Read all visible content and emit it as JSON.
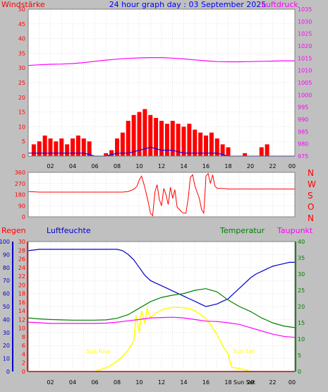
{
  "header": {
    "wind_label": "Windstärke",
    "title": "24 hour graph day : 03 September 2025",
    "pressure_label": "Luftdruck"
  },
  "middle": {
    "dir_labels": [
      "N",
      "W",
      "S",
      "O",
      "N"
    ]
  },
  "bottom": {
    "rain_label": "Regen",
    "humidity_label": "Luftfeuchte",
    "temp_label": "Temperatur",
    "dew_label": "Taupunkt",
    "sunrise_label": "Sun Rise",
    "sunset_label": "Sun Set",
    "sun_axis_label": "Sun Set"
  },
  "colors": {
    "wind": "#ff0000",
    "gust": "#0000ff",
    "pressure": "#ff00ff",
    "direction": "#ff0000",
    "humidity": "#0000cc",
    "temperature": "#008000",
    "dewpoint": "#ff00ff",
    "solar": "#ffff00",
    "rain": "#ff0000",
    "title": "#0000ff"
  },
  "chart_data": [
    {
      "type": "bar",
      "title": "24 hour graph day : 03 September 2025",
      "x_tick_labels": [
        "02",
        "04",
        "06",
        "08",
        "10",
        "12",
        "14",
        "16",
        "18",
        "20",
        "22",
        "00"
      ],
      "xlim_hours": [
        0,
        24
      ],
      "left_axis": {
        "label": "Windstärke",
        "ylim": [
          0,
          50
        ],
        "ticks": [
          0,
          5,
          10,
          15,
          20,
          25,
          30,
          35,
          40,
          45,
          50
        ]
      },
      "right_axis": {
        "label": "Luftdruck",
        "ylim": [
          975,
          1035
        ],
        "ticks": [
          975,
          980,
          985,
          990,
          995,
          1000,
          1005,
          1010,
          1015,
          1020,
          1025,
          1030,
          1035
        ]
      },
      "grid": true,
      "series": [
        {
          "name": "Windstärke",
          "type": "bar",
          "hours": [
            0.5,
            1,
            1.5,
            2,
            2.5,
            3,
            3.5,
            4,
            4.5,
            5,
            5.5,
            6,
            6.5,
            7,
            7.5,
            8,
            8.5,
            9,
            9.5,
            10,
            10.5,
            11,
            11.5,
            12,
            12.5,
            13,
            13.5,
            14,
            14.5,
            15,
            15.5,
            16,
            16.5,
            17,
            17.5,
            18,
            18.5,
            19,
            19.5,
            20,
            20.5,
            21,
            21.5,
            22,
            22.5,
            23,
            23.5
          ],
          "values": [
            4,
            5,
            7,
            6,
            5,
            6,
            4,
            6,
            7,
            6,
            5,
            0,
            0,
            1,
            2,
            6,
            8,
            12,
            14,
            15,
            16,
            14,
            13,
            12,
            11,
            12,
            11,
            10,
            11,
            9,
            8,
            7,
            8,
            6,
            4,
            3,
            0,
            0,
            1,
            0,
            0,
            3,
            4,
            0,
            0,
            0,
            0
          ]
        },
        {
          "name": "Windböe",
          "type": "line",
          "hours": [
            0,
            1,
            2,
            3,
            4,
            5,
            6,
            7,
            8,
            9,
            10,
            11,
            12,
            13,
            14,
            15,
            16,
            17,
            18,
            19,
            20,
            21,
            22,
            23,
            24
          ],
          "values": [
            1,
            1,
            1,
            1,
            1,
            1,
            0,
            0,
            1,
            1,
            2,
            3,
            2,
            2,
            1,
            1,
            1,
            1,
            0,
            0,
            0,
            0,
            0,
            0,
            0
          ]
        },
        {
          "name": "Luftdruck",
          "type": "line",
          "hours": [
            0,
            1,
            2,
            3,
            4,
            5,
            6,
            7,
            8,
            9,
            10,
            11,
            12,
            13,
            14,
            15,
            16,
            17,
            18,
            19,
            20,
            21,
            22,
            23,
            24
          ],
          "values": [
            1012,
            1012.3,
            1012.5,
            1012.6,
            1012.8,
            1013.2,
            1013.7,
            1014.2,
            1014.6,
            1014.9,
            1015.1,
            1015.2,
            1015.2,
            1015,
            1014.7,
            1014.3,
            1013.9,
            1013.6,
            1013.5,
            1013.5,
            1013.6,
            1013.7,
            1013.8,
            1013.9,
            1013.9
          ]
        }
      ]
    },
    {
      "type": "line",
      "name": "Windrichtung",
      "xlim_hours": [
        0,
        24
      ],
      "ylim": [
        0,
        360
      ],
      "ticks": [
        0,
        90,
        180,
        270,
        360
      ],
      "grid": true,
      "series": [
        {
          "name": "Windrichtung",
          "hours": [
            0,
            1,
            2,
            3,
            4,
            5,
            6,
            7,
            8,
            8.5,
            9,
            9.3,
            9.6,
            9.8,
            10,
            10.2,
            10.4,
            10.6,
            10.8,
            11,
            11.2,
            11.4,
            11.6,
            11.8,
            12,
            12.2,
            12.4,
            12.6,
            12.8,
            13,
            13.2,
            13.4,
            13.6,
            13.8,
            14,
            14.2,
            14.4,
            14.6,
            14.8,
            15,
            15.2,
            15.4,
            15.6,
            15.8,
            16,
            16.2,
            16.4,
            16.6,
            16.8,
            17,
            17.5,
            18,
            19,
            20,
            21,
            22,
            23,
            24
          ],
          "values": [
            205,
            200,
            200,
            200,
            200,
            200,
            200,
            200,
            200,
            200,
            205,
            215,
            230,
            250,
            300,
            330,
            270,
            200,
            120,
            30,
            10,
            200,
            260,
            140,
            90,
            230,
            180,
            100,
            240,
            150,
            220,
            80,
            60,
            40,
            30,
            30,
            150,
            320,
            340,
            250,
            200,
            150,
            60,
            30,
            330,
            350,
            270,
            340,
            250,
            230,
            230,
            225,
            225,
            225,
            225,
            225,
            225,
            225
          ]
        }
      ]
    },
    {
      "type": "line",
      "x_tick_labels": [
        "02",
        "04",
        "06",
        "08",
        "10",
        "12",
        "14",
        "16",
        "18",
        "20",
        "22",
        "00"
      ],
      "xlim_hours": [
        0,
        24
      ],
      "rain_axis": {
        "label": "Regen",
        "ylim": [
          0,
          30
        ],
        "ticks": [
          0,
          2,
          4,
          6,
          8,
          10,
          12,
          14,
          16,
          18,
          20,
          22,
          24,
          26,
          28,
          30
        ]
      },
      "humidity_axis": {
        "label": "Luftfeuchte",
        "ylim": [
          0,
          100
        ],
        "ticks": [
          0,
          10,
          20,
          30,
          40,
          50,
          60,
          70,
          80,
          90,
          100
        ]
      },
      "temperature_axis": {
        "label": "Temperatur",
        "ylim": [
          0,
          40
        ],
        "ticks": [
          0,
          5,
          10,
          15,
          20,
          25,
          30,
          35,
          40
        ]
      },
      "dewpoint_axis": {
        "label": "Taupunkt"
      },
      "annotations": [
        "Sun Rise",
        "Sun Set"
      ],
      "grid": true,
      "series": [
        {
          "name": "Luftfeuchte",
          "hours": [
            0,
            1,
            2,
            3,
            4,
            5,
            6,
            7,
            8,
            8.5,
            9,
            9.5,
            10,
            10.5,
            11,
            11.5,
            12,
            12.5,
            13,
            13.5,
            14,
            14.5,
            15,
            15.5,
            16,
            16.5,
            17,
            17.5,
            18,
            18.5,
            19,
            19.5,
            20,
            20.5,
            21,
            21.5,
            22,
            22.5,
            23,
            23.5,
            24
          ],
          "values": [
            93,
            94,
            94,
            94,
            94,
            94,
            94,
            94,
            94,
            93,
            90,
            86,
            80,
            74,
            70,
            68,
            66,
            64,
            62,
            60,
            58,
            56,
            54,
            52,
            50,
            51,
            52,
            54,
            56,
            60,
            64,
            68,
            72,
            75,
            77,
            79,
            81,
            82,
            83,
            84,
            84
          ]
        },
        {
          "name": "Temperatur",
          "hours": [
            0,
            1,
            2,
            3,
            4,
            5,
            6,
            7,
            8,
            9,
            10,
            11,
            12,
            13,
            14,
            15,
            16,
            17,
            18,
            19,
            20,
            21,
            22,
            23,
            24
          ],
          "values": [
            16.5,
            16.2,
            16,
            15.9,
            15.8,
            15.8,
            15.8,
            15.9,
            16.4,
            17.5,
            19.5,
            21.5,
            22.8,
            23.5,
            24,
            25,
            25.5,
            24.5,
            22,
            20,
            18.5,
            16.5,
            15,
            14,
            13.5
          ]
        },
        {
          "name": "Taupunkt",
          "hours": [
            0,
            1,
            2,
            3,
            4,
            5,
            6,
            7,
            8,
            9,
            10,
            11,
            12,
            13,
            14,
            15,
            16,
            17,
            18,
            19,
            20,
            21,
            22,
            23,
            24
          ],
          "values": [
            15.2,
            15,
            14.8,
            14.8,
            14.8,
            14.8,
            14.8,
            14.9,
            15.2,
            15.6,
            16,
            16.5,
            16.6,
            16.7,
            16.5,
            16,
            15.5,
            15.4,
            15,
            14.5,
            13.5,
            12.5,
            11.5,
            10.8,
            10.5
          ]
        },
        {
          "name": "Solar",
          "hours": [
            0,
            6,
            6.3,
            6.7,
            7,
            7.5,
            8,
            8.5,
            9,
            9.5,
            9.7,
            10,
            10.2,
            10.5,
            10.7,
            11,
            11.5,
            12,
            12.5,
            13,
            13.5,
            14,
            14.5,
            15,
            15.5,
            16,
            16.5,
            17,
            17.5,
            18,
            18.3,
            19,
            19.5,
            20,
            24
          ],
          "values": [
            0,
            0,
            0.3,
            0.6,
            0.9,
            1.5,
            2.4,
            3.5,
            5,
            7,
            13,
            9,
            14,
            11,
            14.5,
            12.5,
            13.5,
            14.2,
            14.6,
            14.8,
            14.8,
            14.7,
            14.5,
            14,
            13.2,
            12.2,
            10.5,
            8.5,
            6,
            4,
            1,
            0.7,
            0.4,
            0,
            0
          ]
        },
        {
          "name": "Regen",
          "hours": [
            0,
            24
          ],
          "values": [
            0,
            0
          ]
        }
      ]
    }
  ]
}
